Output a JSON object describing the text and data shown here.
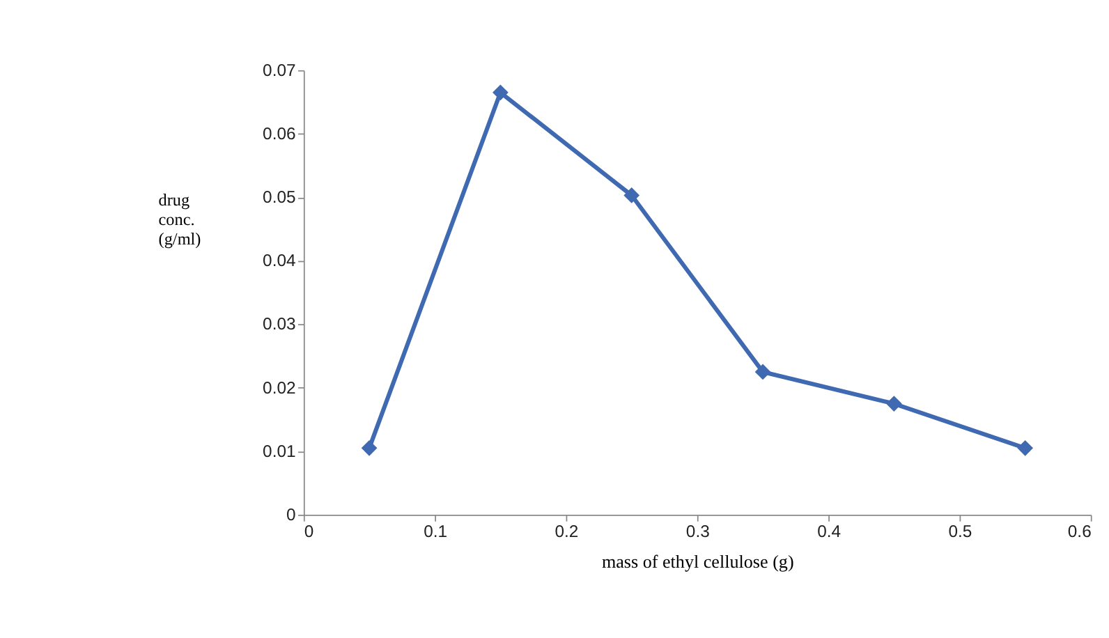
{
  "chart_data": {
    "type": "line",
    "xlabel": "mass of ethyl cellulose (g)",
    "ylabel": "drug conc. (g/ml)",
    "x": [
      0.05,
      0.15,
      0.25,
      0.35,
      0.45,
      0.55
    ],
    "series": [
      {
        "color": "#3f69b0",
        "values": [
          0.0105,
          0.0665,
          0.0503,
          0.0225,
          0.0175,
          0.0105
        ]
      }
    ],
    "xlim": [
      0,
      0.6
    ],
    "xticks": [
      0,
      0.1,
      0.2,
      0.3,
      0.4,
      0.5,
      0.6
    ],
    "ylim": [
      0,
      0.07
    ],
    "yticks": [
      0,
      0.01,
      0.02,
      0.03,
      0.04,
      0.05,
      0.06,
      0.07
    ],
    "marker": "diamond",
    "line_style": "solid",
    "grid": false,
    "legend": false
  }
}
